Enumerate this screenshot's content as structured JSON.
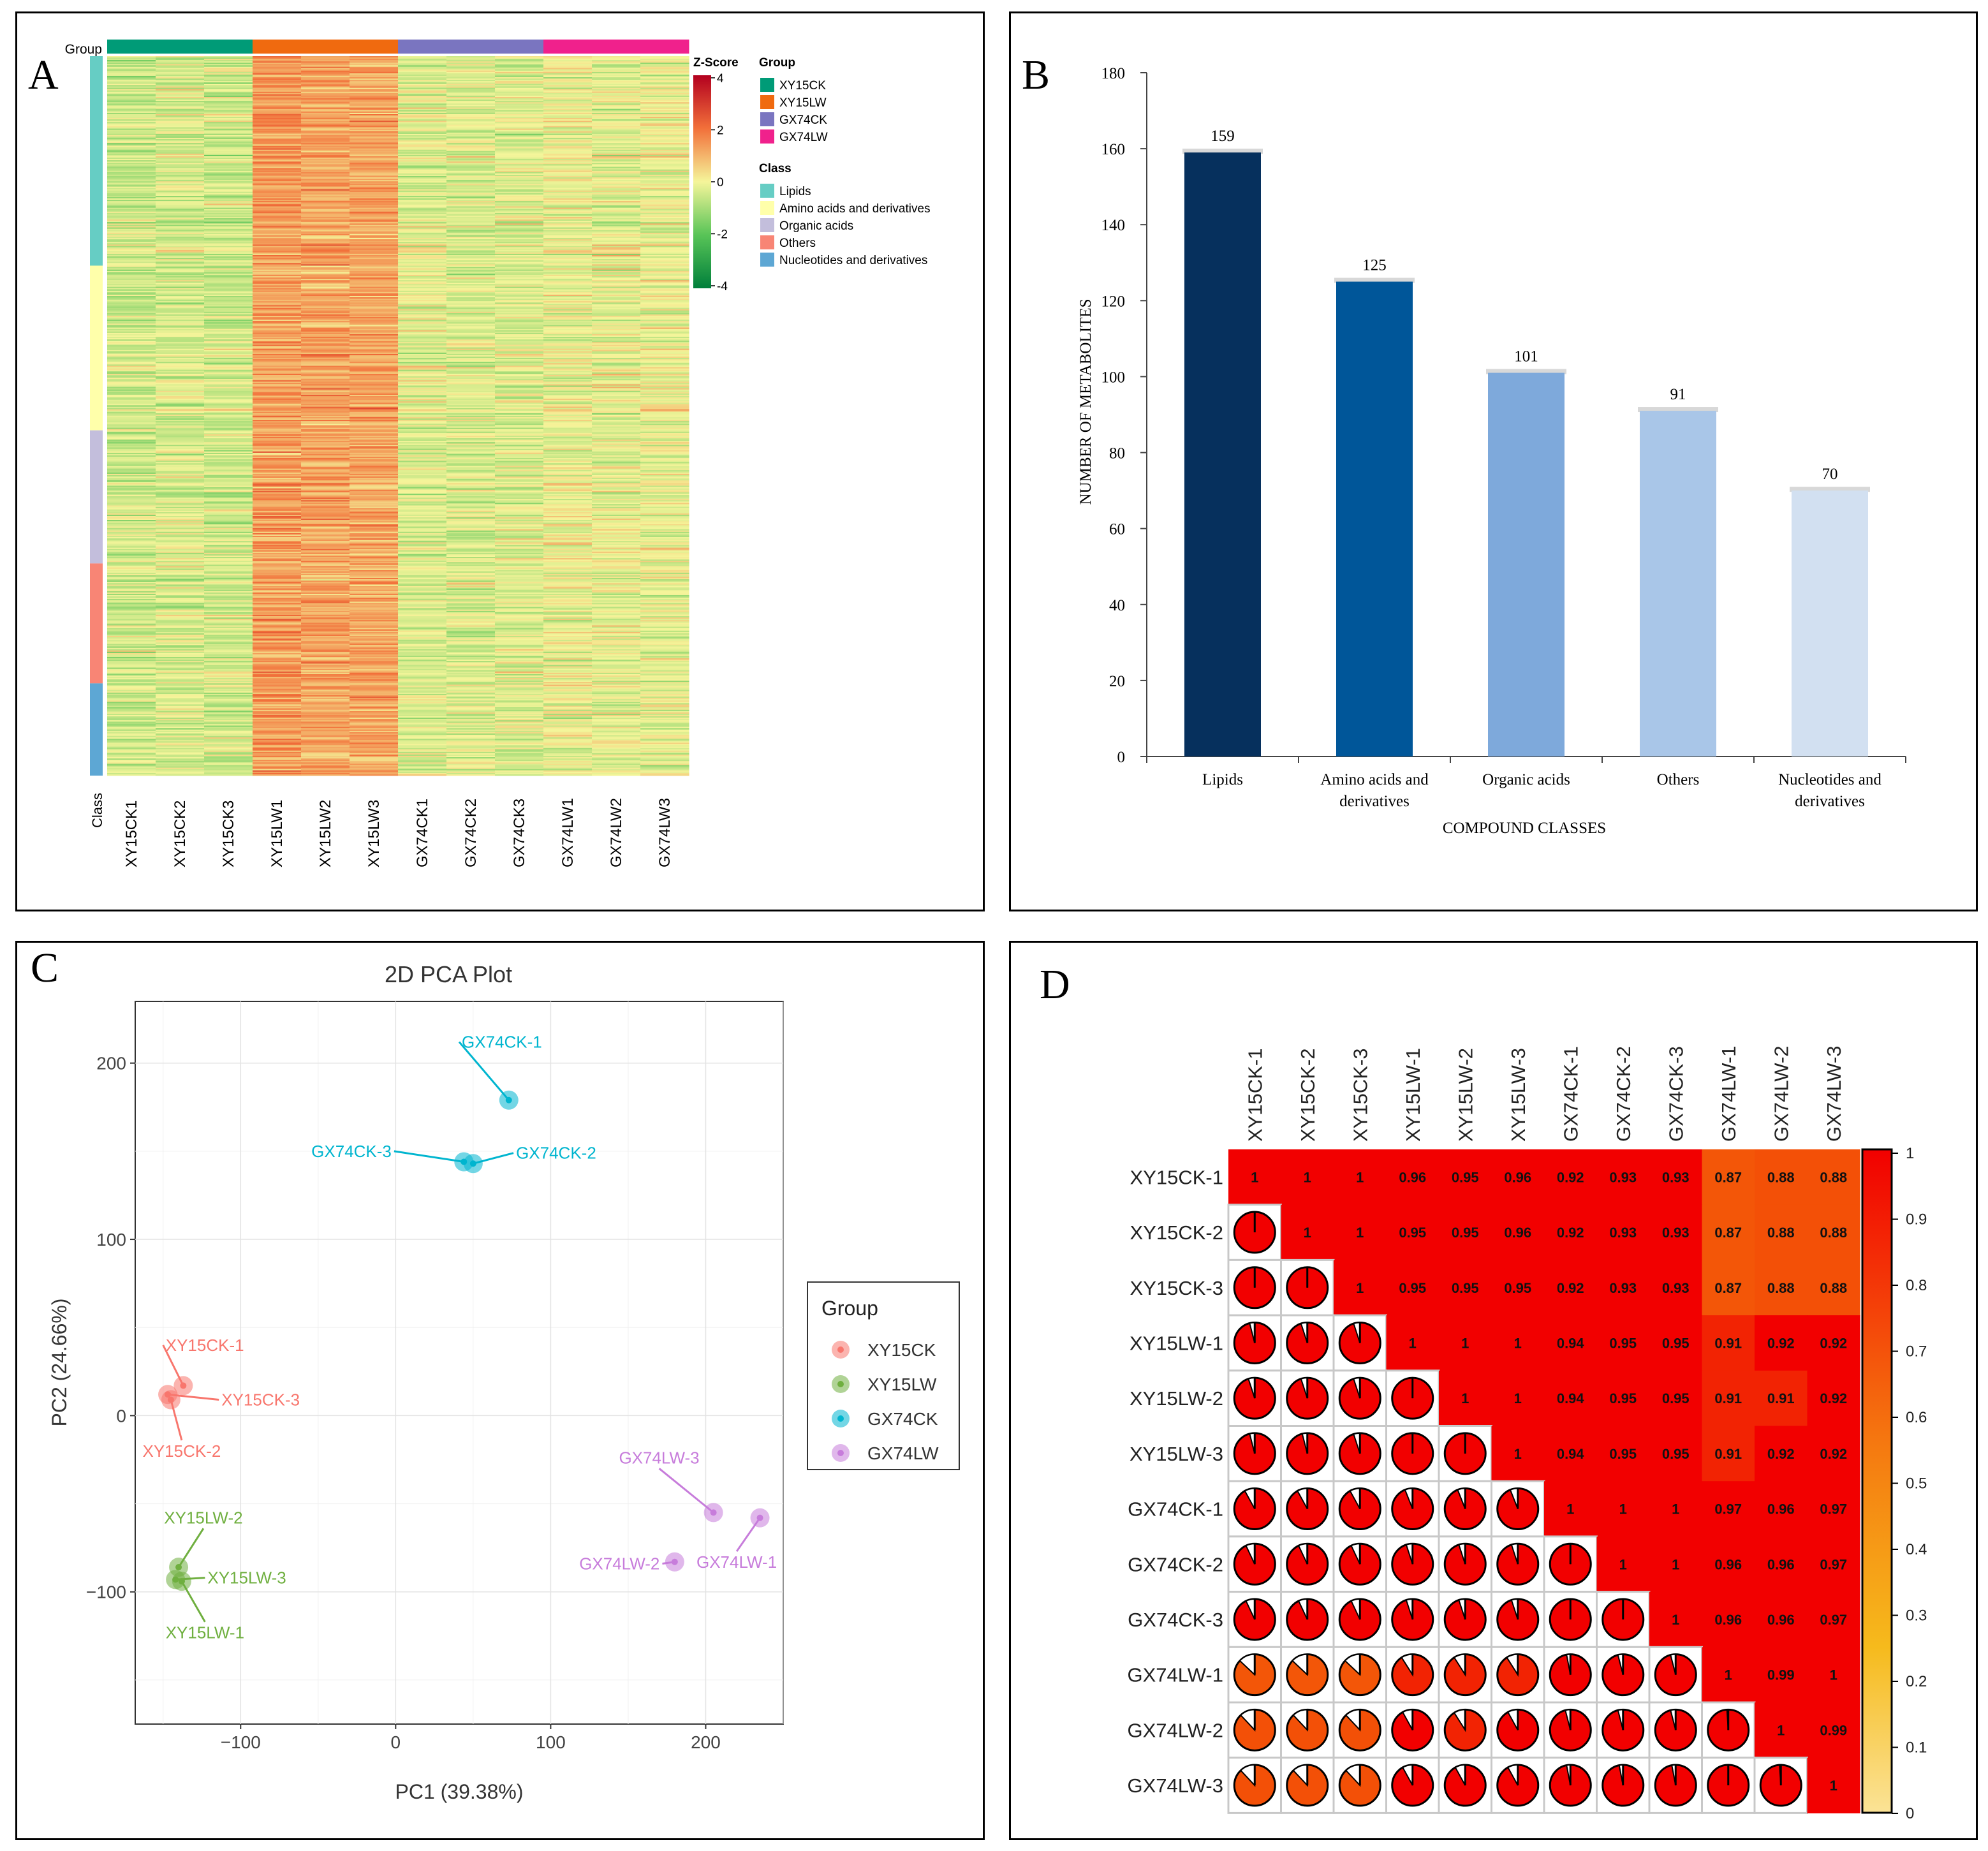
{
  "colors": {
    "XY15CK": "#009B77",
    "XY15LW": "#F06A0F",
    "GX74CK": "#7A75C0",
    "GX74LW": "#F0218C",
    "class_lipids": "#66CDC4",
    "class_amino": "#FFFFAA",
    "class_organic": "#C3BEDC",
    "class_others": "#F88575",
    "class_nucleo": "#5DA7D4",
    "pca_XY15CK": "#F8766D",
    "pca_XY15LW": "#6FAF3F",
    "pca_GX74CK": "#00B5CF",
    "pca_GX74LW": "#C77CDB",
    "bar_lipids": "#06305D",
    "bar_amino": "#005699",
    "bar_organic": "#7EA9DB",
    "bar_others": "#A9C6E8",
    "bar_nucleo": "#D2E0F1"
  },
  "chart_data": [
    {
      "panel": "A",
      "type": "heatmap",
      "group_label": "Group",
      "class_label": "Class",
      "samples": [
        "XY15CK1",
        "XY15CK2",
        "XY15CK3",
        "XY15LW1",
        "XY15LW2",
        "XY15LW3",
        "GX74CK1",
        "GX74CK2",
        "GX74CK3",
        "GX74LW1",
        "GX74LW2",
        "GX74LW3"
      ],
      "sample_groups": [
        "XY15CK",
        "XY15CK",
        "XY15CK",
        "XY15LW",
        "XY15LW",
        "XY15LW",
        "GX74CK",
        "GX74CK",
        "GX74CK",
        "GX74LW",
        "GX74LW",
        "GX74LW"
      ],
      "class_counts": [
        159,
        125,
        101,
        91,
        70
      ],
      "class_keys": [
        "class_lipids",
        "class_amino",
        "class_organic",
        "class_others",
        "class_nucleo"
      ],
      "sample_bias": [
        -0.45,
        -0.35,
        -0.45,
        1.35,
        1.25,
        1.2,
        -0.25,
        -0.3,
        -0.25,
        -0.1,
        -0.15,
        -0.1
      ],
      "zscore_title": "Z-Score",
      "zscore_ticks": [
        "4",
        "2",
        "0",
        "-2",
        "-4"
      ],
      "legend_group_title": "Group",
      "legend_groups": [
        "XY15CK",
        "XY15LW",
        "GX74CK",
        "GX74LW"
      ],
      "legend_class_title": "Class",
      "legend_classes": [
        "Lipids",
        "Amino acids and derivatives",
        "Organic acids",
        "Others",
        "Nucleotides and derivatives"
      ]
    },
    {
      "panel": "B",
      "type": "bar",
      "categories": [
        "Lipids",
        "Amino acids and derivatives",
        "Organic acids",
        "Others",
        "Nucleotides and derivatives"
      ],
      "category_lines": [
        [
          "Lipids"
        ],
        [
          "Amino acids and",
          "derivatives"
        ],
        [
          "Organic acids"
        ],
        [
          "Others"
        ],
        [
          "Nucleotides and",
          "derivatives"
        ]
      ],
      "values": [
        159,
        125,
        101,
        91,
        70
      ],
      "value_labels": [
        "159",
        "125",
        "101",
        "91",
        "70"
      ],
      "ylim": [
        0,
        180
      ],
      "yticks": [
        "0",
        "20",
        "40",
        "60",
        "80",
        "100",
        "120",
        "140",
        "160",
        "180"
      ],
      "xlabel": "COMPOUND CLASSES",
      "ylabel": "NUMBER OF METABOLITES"
    },
    {
      "panel": "C",
      "type": "scatter",
      "title": "2D PCA Plot",
      "xlabel": "PC1 (39.38%)",
      "ylabel": "PC2 (24.66%)",
      "xlim": [
        -168,
        250
      ],
      "ylim": [
        -175,
        235
      ],
      "xticks": [
        "−100",
        "0",
        "100",
        "200"
      ],
      "xtick_values": [
        -100,
        0,
        100,
        200
      ],
      "yticks": [
        "200",
        "100",
        "0",
        "−100"
      ],
      "ytick_values": [
        200,
        100,
        0,
        -100
      ],
      "legend_title": "Group",
      "legend_items": [
        "XY15CK",
        "XY15LW",
        "GX74CK",
        "GX74LW"
      ],
      "points": [
        {
          "name": "XY15CK-1",
          "group": "XY15CK",
          "x": -137,
          "y": 17,
          "lx": -150,
          "ly": 40,
          "anchor": "start"
        },
        {
          "name": "XY15CK-2",
          "group": "XY15CK",
          "x": -145,
          "y": 9,
          "lx": -138,
          "ly": -14,
          "anchor": "middle"
        },
        {
          "name": "XY15CK-3",
          "group": "XY15CK",
          "x": -147,
          "y": 12,
          "lx": -114,
          "ly": 9,
          "anchor": "start"
        },
        {
          "name": "XY15LW-1",
          "group": "XY15LW",
          "x": -138,
          "y": -94,
          "lx": -123,
          "ly": -117,
          "anchor": "middle"
        },
        {
          "name": "XY15LW-2",
          "group": "XY15LW",
          "x": -140,
          "y": -86,
          "lx": -124,
          "ly": -64,
          "anchor": "middle"
        },
        {
          "name": "XY15LW-3",
          "group": "XY15LW",
          "x": -142,
          "y": -93,
          "lx": -123,
          "ly": -92,
          "anchor": "start"
        },
        {
          "name": "GX74CK-1",
          "group": "GX74CK",
          "x": 73,
          "y": 179,
          "lx": 41,
          "ly": 212,
          "anchor": "start"
        },
        {
          "name": "GX74CK-2",
          "group": "GX74CK",
          "x": 50,
          "y": 143,
          "lx": 76,
          "ly": 149,
          "anchor": "start"
        },
        {
          "name": "GX74CK-3",
          "group": "GX74CK",
          "x": 44,
          "y": 144,
          "lx": -1,
          "ly": 150,
          "anchor": "end"
        },
        {
          "name": "GX74LW-1",
          "group": "GX74LW",
          "x": 235,
          "y": -58,
          "lx": 220,
          "ly": -77,
          "anchor": "middle"
        },
        {
          "name": "GX74LW-2",
          "group": "GX74LW",
          "x": 180,
          "y": -83,
          "lx": 172,
          "ly": -84,
          "anchor": "end"
        },
        {
          "name": "GX74LW-3",
          "group": "GX74LW",
          "x": 205,
          "y": -55,
          "lx": 170,
          "ly": -30,
          "anchor": "middle"
        }
      ]
    },
    {
      "panel": "D",
      "type": "heatmap",
      "labels": [
        "XY15CK-1",
        "XY15CK-2",
        "XY15CK-3",
        "XY15LW-1",
        "XY15LW-2",
        "XY15LW-3",
        "GX74CK-1",
        "GX74CK-2",
        "GX74CK-3",
        "GX74LW-1",
        "GX74LW-2",
        "GX74LW-3"
      ],
      "matrix_labels": [
        [
          "1",
          "1",
          "1",
          "0.96",
          "0.95",
          "0.96",
          "0.92",
          "0.93",
          "0.93",
          "0.87",
          "0.88",
          "0.88"
        ],
        [
          "1",
          "1",
          "1",
          "0.95",
          "0.95",
          "0.96",
          "0.92",
          "0.93",
          "0.93",
          "0.87",
          "0.88",
          "0.88"
        ],
        [
          "1",
          "1",
          "1",
          "0.95",
          "0.95",
          "0.95",
          "0.92",
          "0.93",
          "0.93",
          "0.87",
          "0.88",
          "0.88"
        ],
        [
          "0.96",
          "0.95",
          "0.95",
          "1",
          "1",
          "1",
          "0.94",
          "0.95",
          "0.95",
          "0.91",
          "0.92",
          "0.92"
        ],
        [
          "0.95",
          "0.95",
          "0.95",
          "1",
          "1",
          "1",
          "0.94",
          "0.95",
          "0.95",
          "0.91",
          "0.91",
          "0.92"
        ],
        [
          "0.96",
          "0.96",
          "0.95",
          "1",
          "1",
          "1",
          "0.94",
          "0.95",
          "0.95",
          "0.91",
          "0.92",
          "0.92"
        ],
        [
          "0.92",
          "0.92",
          "0.92",
          "0.94",
          "0.94",
          "0.94",
          "1",
          "1",
          "1",
          "0.97",
          "0.96",
          "0.97"
        ],
        [
          "0.93",
          "0.93",
          "0.93",
          "0.95",
          "0.95",
          "0.95",
          "1",
          "1",
          "1",
          "0.96",
          "0.96",
          "0.97"
        ],
        [
          "0.93",
          "0.93",
          "0.93",
          "0.95",
          "0.95",
          "0.95",
          "1",
          "1",
          "1",
          "0.96",
          "0.96",
          "0.97"
        ],
        [
          "0.87",
          "0.87",
          "0.87",
          "0.91",
          "0.91",
          "0.91",
          "0.97",
          "0.96",
          "0.96",
          "1",
          "0.99",
          "1"
        ],
        [
          "0.88",
          "0.88",
          "0.88",
          "0.92",
          "0.91",
          "0.92",
          "0.96",
          "0.96",
          "0.96",
          "0.99",
          "1",
          "0.99"
        ],
        [
          "0.88",
          "0.88",
          "0.88",
          "0.92",
          "0.92",
          "0.92",
          "0.97",
          "0.97",
          "0.97",
          "1",
          "0.99",
          "1"
        ]
      ],
      "scale_ticks": [
        "1",
        "0.9",
        "0.8",
        "0.7",
        "0.6",
        "0.5",
        "0.4",
        "0.3",
        "0.2",
        "0.1",
        "0"
      ]
    }
  ],
  "panel_tags": [
    "A",
    "B",
    "C",
    "D"
  ]
}
